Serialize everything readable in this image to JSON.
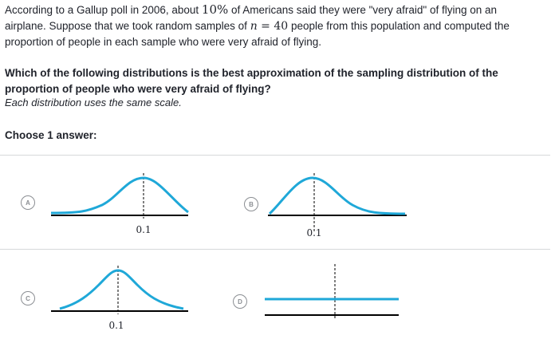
{
  "prompt": {
    "line1_pre": "According to a Gallup poll in 2006, about ",
    "percent": "10%",
    "line1_post": " of Americans said they were \"very afraid\" of flying on an",
    "line2_pre": "airplane. Suppose that we took random samples of ",
    "n_symbol": "n",
    "equals": " = ",
    "n_value": "40",
    "line2_post": " people from this population and computed the",
    "line3": "proportion of people in each sample who were very afraid of flying."
  },
  "question": {
    "text": "Which of the following distributions is the best approximation of the sampling distribution of the proportion of people who were very afraid of flying?",
    "note": "Each distribution uses the same scale."
  },
  "choose_label": "Choose 1 answer:",
  "choices": [
    {
      "letter": "A",
      "tick_label": "0.1",
      "shape": "left-skewed"
    },
    {
      "letter": "B",
      "tick_label": "0.1",
      "shape": "right-skewed"
    },
    {
      "letter": "C",
      "tick_label": "0.1",
      "shape": "symmetric"
    },
    {
      "letter": "D",
      "tick_label": "",
      "shape": "uniform"
    }
  ],
  "colors": {
    "curve": "#1fa8d8",
    "axis": "#000000",
    "divider": "#d6d8da",
    "radio": "#8b8e93"
  }
}
